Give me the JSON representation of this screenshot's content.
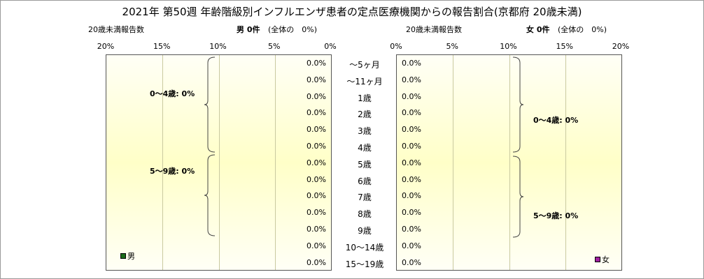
{
  "title": "2021年 第50週 年齢階級別インフルエンザ患者の定点医療機関からの報告割合(京都府 20歳未満)",
  "left_caption": "20歳未満報告数",
  "male_header": {
    "label": "男 0件",
    "note": "(全体の　0%)"
  },
  "right_caption": "20歳未満報告数",
  "female_header": {
    "label": "女 0件",
    "note": "(全体の　0%)"
  },
  "male_ticks": [
    "20%",
    "15%",
    "10%",
    "5%",
    "0%"
  ],
  "female_ticks": [
    "0%",
    "5%",
    "10%",
    "15%",
    "20%"
  ],
  "age_groups": [
    "～5ヶ月",
    "～11ヶ月",
    "1歳",
    "2歳",
    "3歳",
    "4歳",
    "5歳",
    "6歳",
    "7歳",
    "8歳",
    "9歳",
    "10～14歳",
    "15～19歳"
  ],
  "male_values": [
    "0.0%",
    "0.0%",
    "0.0%",
    "0.0%",
    "0.0%",
    "0.0%",
    "0.0%",
    "0.0%",
    "0.0%",
    "0.0%",
    "0.0%",
    "0.0%",
    "0.0%"
  ],
  "female_values": [
    "0.0%",
    "0.0%",
    "0.0%",
    "0.0%",
    "0.0%",
    "0.0%",
    "0.0%",
    "0.0%",
    "0.0%",
    "0.0%",
    "0.0%",
    "0.0%",
    "0.0%"
  ],
  "male_brackets": [
    "0～4歳: 0%",
    "5～9歳: 0%"
  ],
  "female_brackets": [
    "0～4歳: 0%",
    "5～9歳: 0%"
  ],
  "legend": {
    "male": "男",
    "female": "女",
    "male_color": "#1a6b1a",
    "female_color": "#a020a0"
  },
  "chart_data": {
    "type": "bar",
    "title": "2021年 第50週 年齢階級別インフルエンザ患者の定点医療機関からの報告割合(京都府 20歳未満)",
    "categories": [
      "～5ヶ月",
      "～11ヶ月",
      "1歳",
      "2歳",
      "3歳",
      "4歳",
      "5歳",
      "6歳",
      "7歳",
      "8歳",
      "9歳",
      "10～14歳",
      "15～19歳"
    ],
    "series": [
      {
        "name": "男",
        "values": [
          0,
          0,
          0,
          0,
          0,
          0,
          0,
          0,
          0,
          0,
          0,
          0,
          0
        ]
      },
      {
        "name": "女",
        "values": [
          0,
          0,
          0,
          0,
          0,
          0,
          0,
          0,
          0,
          0,
          0,
          0,
          0
        ]
      }
    ],
    "xlim": [
      0,
      20
    ],
    "orientation": "horizontal-butterfly",
    "grid": true
  }
}
